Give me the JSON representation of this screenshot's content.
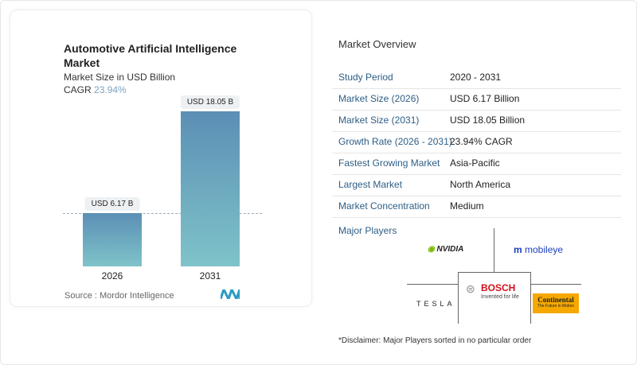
{
  "chart_data": {
    "type": "bar",
    "title": "Automotive Artificial Intelligence Market",
    "subtitle": "Market Size in USD Billion",
    "cagr_label": "CAGR",
    "cagr_value": "23.94%",
    "categories": [
      "2026",
      "2031"
    ],
    "values": [
      6.17,
      18.05
    ],
    "data_labels": [
      "USD 6.17 B",
      "USD 18.05 B"
    ],
    "colors": {
      "top": "#5b8fb5",
      "bottom": "#7fc3c9"
    },
    "grid": false
  },
  "source": "Source :  Mordor Intelligence",
  "overview": {
    "title": "Market Overview",
    "rows": [
      {
        "k": "Study Period",
        "v": "2020 - 2031"
      },
      {
        "k": "Market Size (2026)",
        "v": "USD 6.17 Billion"
      },
      {
        "k": "Market Size (2031)",
        "v": "USD 18.05 Billion"
      },
      {
        "k": "Growth Rate (2026 - 2031)",
        "v": "23.94% CAGR"
      },
      {
        "k": "Fastest Growing Market",
        "v": "Asia-Pacific"
      },
      {
        "k": "Largest Market",
        "v": "North America"
      },
      {
        "k": "Market Concentration",
        "v": "Medium"
      }
    ]
  },
  "players": {
    "title": "Major Players",
    "logos": {
      "nvidia": "NVIDIA",
      "mobileye": "mobileye",
      "bosch": "BOSCH",
      "bosch_tag": "Invented for life",
      "tesla": "TESLA",
      "continental": "Continental",
      "continental_tag": "The Future in Motion"
    }
  },
  "disclaimer": "*Disclaimer: Major Players sorted in no particular order"
}
